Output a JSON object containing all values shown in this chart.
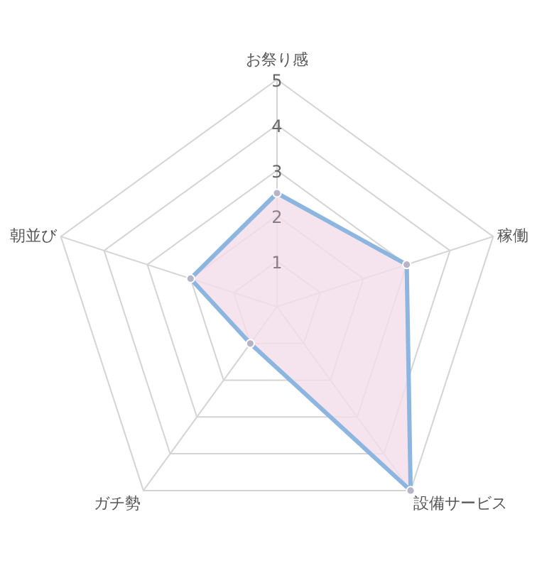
{
  "chart_data": {
    "type": "radar",
    "categories": [
      "お祭り感",
      "稼働",
      "設備サービス",
      "ガチ勢",
      "朝並び"
    ],
    "ylim": [
      0,
      5
    ],
    "yticks": [
      1,
      2,
      3,
      4,
      5
    ],
    "grid": true,
    "marker": "circle",
    "series": [
      {
        "color": "#8cb6df",
        "values": [
          2.5,
          3,
          5,
          1,
          2
        ]
      }
    ]
  }
}
